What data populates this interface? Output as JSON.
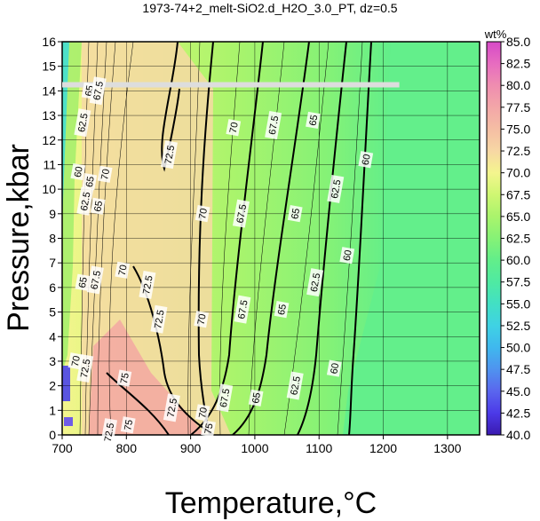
{
  "chart_data": {
    "type": "heatmap",
    "title": "1973-74+2_melt-SiO2.d_H2O_3.0_PT, dz=0.5",
    "xlabel": "Temperature,°C",
    "ylabel": "Pressure,kbar",
    "xlim": [
      700,
      1350
    ],
    "ylim": [
      0,
      16
    ],
    "x_ticks": [
      700,
      800,
      900,
      1000,
      1100,
      1200,
      1300
    ],
    "y_ticks": [
      0,
      1,
      2,
      3,
      4,
      5,
      6,
      7,
      8,
      9,
      10,
      11,
      12,
      13,
      14,
      15,
      16
    ],
    "grid": true,
    "colorbar": {
      "label": "wt%",
      "min": 40,
      "max": 85,
      "ticks": [
        "85.0",
        "82.5",
        "80.0",
        "77.5",
        "75.0",
        "72.5",
        "70.0",
        "67.5",
        "65.0",
        "62.5",
        "60.0",
        "57.5",
        "55.0",
        "52.5",
        "50.0",
        "47.5",
        "45.0",
        "42.5",
        "40.0"
      ],
      "stops": [
        {
          "value": 40.0,
          "color": "#3a1ab0"
        },
        {
          "value": 42.5,
          "color": "#4c3ae8"
        },
        {
          "value": 45.0,
          "color": "#5a66ee"
        },
        {
          "value": 47.5,
          "color": "#4f93ef"
        },
        {
          "value": 50.0,
          "color": "#3fb8ee"
        },
        {
          "value": 52.5,
          "color": "#3fd2e4"
        },
        {
          "value": 55.0,
          "color": "#42e0c4"
        },
        {
          "value": 57.5,
          "color": "#4feaa2"
        },
        {
          "value": 60.0,
          "color": "#62ee8a"
        },
        {
          "value": 62.5,
          "color": "#86f276"
        },
        {
          "value": 65.0,
          "color": "#aaf46c"
        },
        {
          "value": 67.5,
          "color": "#cff772"
        },
        {
          "value": 70.0,
          "color": "#f4f58e"
        },
        {
          "value": 72.5,
          "color": "#f7d7a4"
        },
        {
          "value": 75.0,
          "color": "#f5bea4"
        },
        {
          "value": 77.5,
          "color": "#f3a6a8"
        },
        {
          "value": 80.0,
          "color": "#ef8db0"
        },
        {
          "value": 82.5,
          "color": "#e76cc0"
        },
        {
          "value": 85.0,
          "color": "#d649c8"
        }
      ]
    },
    "highlight_line": {
      "pressure": 14.25,
      "x_from": 700,
      "x_to": 1225,
      "color": "#dddddd"
    },
    "contour_labels": [
      {
        "text": "65",
        "x": 743,
        "y": 14.0
      },
      {
        "text": "67.5",
        "x": 757,
        "y": 14.0
      },
      {
        "text": "62.5",
        "x": 733,
        "y": 12.7
      },
      {
        "text": "72.5",
        "x": 868,
        "y": 11.4
      },
      {
        "text": "70",
        "x": 968,
        "y": 12.5
      },
      {
        "text": "67.5",
        "x": 1030,
        "y": 12.6
      },
      {
        "text": "65",
        "x": 1092,
        "y": 12.8
      },
      {
        "text": "60",
        "x": 726,
        "y": 10.7
      },
      {
        "text": "65",
        "x": 744,
        "y": 10.3
      },
      {
        "text": "70",
        "x": 768,
        "y": 10.6
      },
      {
        "text": "62.5",
        "x": 1127,
        "y": 10.0
      },
      {
        "text": "60",
        "x": 1174,
        "y": 11.2
      },
      {
        "text": "62.5",
        "x": 737,
        "y": 9.5
      },
      {
        "text": "65",
        "x": 757,
        "y": 9.3
      },
      {
        "text": "70",
        "x": 920,
        "y": 9.0
      },
      {
        "text": "67.5",
        "x": 980,
        "y": 9.0
      },
      {
        "text": "65",
        "x": 1064,
        "y": 9.0
      },
      {
        "text": "60",
        "x": 1145,
        "y": 7.3
      },
      {
        "text": "65",
        "x": 733,
        "y": 6.2
      },
      {
        "text": "67.5",
        "x": 753,
        "y": 6.3
      },
      {
        "text": "70",
        "x": 795,
        "y": 6.7
      },
      {
        "text": "72.5",
        "x": 834,
        "y": 6.1
      },
      {
        "text": "62.5",
        "x": 1095,
        "y": 6.2
      },
      {
        "text": "72.5",
        "x": 852,
        "y": 4.7
      },
      {
        "text": "70",
        "x": 918,
        "y": 4.7
      },
      {
        "text": "67.5",
        "x": 982,
        "y": 5.1
      },
      {
        "text": "65",
        "x": 1043,
        "y": 5.1
      },
      {
        "text": "70",
        "x": 722,
        "y": 3.0
      },
      {
        "text": "72.5",
        "x": 737,
        "y": 2.7
      },
      {
        "text": "60",
        "x": 1125,
        "y": 2.7
      },
      {
        "text": "75",
        "x": 798,
        "y": 2.3
      },
      {
        "text": "62.5",
        "x": 1064,
        "y": 2.0
      },
      {
        "text": "67.5",
        "x": 954,
        "y": 1.5
      },
      {
        "text": "65",
        "x": 1003,
        "y": 1.5
      },
      {
        "text": "72.5",
        "x": 872,
        "y": 1.1
      },
      {
        "text": "70",
        "x": 920,
        "y": 0.9
      },
      {
        "text": "75",
        "x": 804,
        "y": 0.4
      },
      {
        "text": "75",
        "x": 929,
        "y": 0.25
      },
      {
        "text": "72.5",
        "x": 774,
        "y": 0.1
      }
    ]
  }
}
